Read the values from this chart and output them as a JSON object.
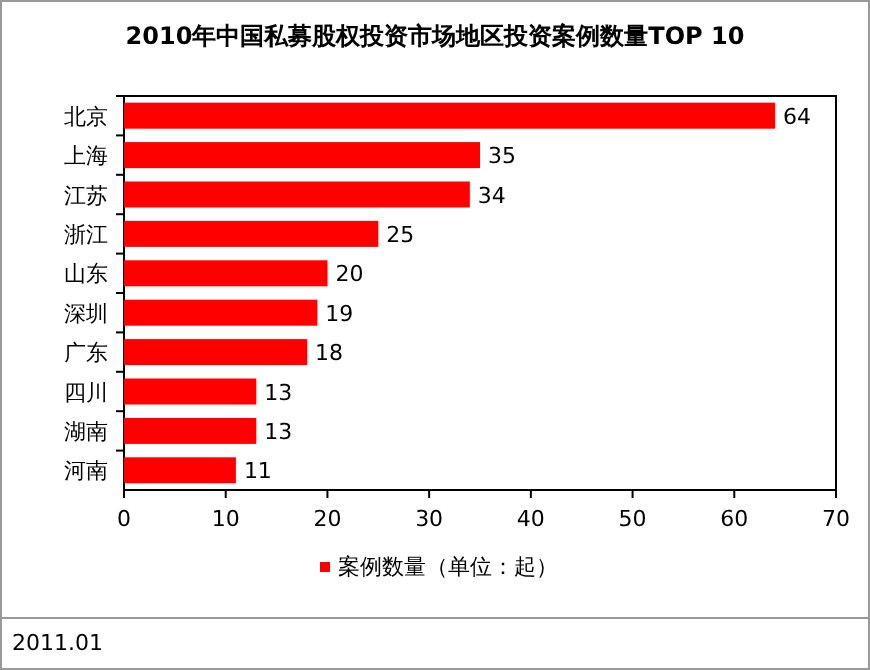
{
  "chart_data": {
    "type": "bar",
    "orientation": "horizontal",
    "title": "2010年中国私募股权投资市场地区投资案例数量TOP 10",
    "categories": [
      "北京",
      "上海",
      "江苏",
      "浙江",
      "山东",
      "深圳",
      "广东",
      "四川",
      "湖南",
      "河南"
    ],
    "series": [
      {
        "name": "案例数量（单位：起）",
        "color": "#ff0000",
        "values": [
          64,
          35,
          34,
          25,
          20,
          19,
          18,
          13,
          13,
          11
        ]
      }
    ],
    "xlim": [
      0,
      70
    ],
    "xticks": [
      0,
      10,
      20,
      30,
      40,
      50,
      60,
      70
    ],
    "data_labels": true,
    "legend": "bottom",
    "grid": false,
    "annotations": [
      "2011.01"
    ]
  }
}
